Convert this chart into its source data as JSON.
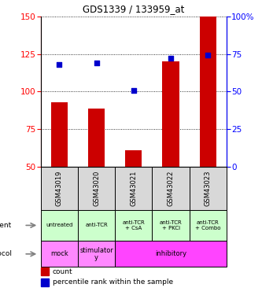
{
  "title": "GDS1339 / 133959_at",
  "samples": [
    "GSM43019",
    "GSM43020",
    "GSM43021",
    "GSM43022",
    "GSM43023"
  ],
  "counts": [
    93,
    89,
    61,
    120,
    150
  ],
  "percentiles": [
    68,
    69,
    51,
    72,
    74
  ],
  "count_baseline": 50,
  "count_ylim": [
    50,
    150
  ],
  "count_yticks": [
    50,
    75,
    100,
    125,
    150
  ],
  "pct_ylim": [
    0,
    100
  ],
  "pct_yticks": [
    0,
    25,
    50,
    75,
    100
  ],
  "bar_color": "#cc0000",
  "dot_color": "#0000cc",
  "agent_labels": [
    "untreated",
    "anti-TCR",
    "anti-TCR\n+ CsA",
    "anti-TCR\n+ PKCi",
    "anti-TCR\n+ Combo"
  ],
  "agent_bg": "#ccffcc",
  "protocol_bg_mock": "#ff88ff",
  "protocol_bg_stimulatory": "#ff88ff",
  "protocol_bg_inhibitory": "#ff44ff",
  "sample_bg": "#d8d8d8",
  "legend_count_color": "#cc0000",
  "legend_pct_color": "#0000cc"
}
